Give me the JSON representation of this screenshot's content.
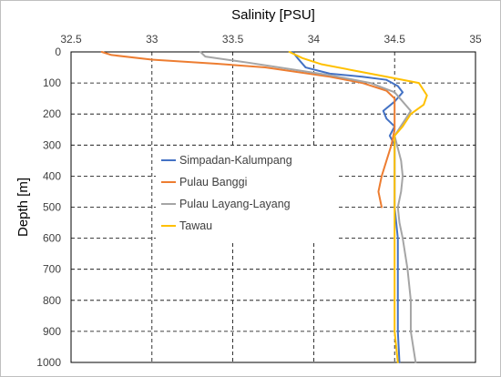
{
  "chart_data": {
    "type": "line",
    "title": "Salinity [PSU]",
    "xlabel": "Salinity [PSU]",
    "ylabel": "Depth [m]",
    "x_axis_position": "top",
    "y_axis_inverted": true,
    "xlim": [
      32.5,
      35
    ],
    "ylim": [
      0,
      1000
    ],
    "x_ticks": [
      32.5,
      33,
      33.5,
      34,
      34.5,
      35
    ],
    "y_ticks": [
      0,
      100,
      200,
      300,
      400,
      500,
      600,
      700,
      800,
      900,
      1000
    ],
    "grid": "dashed",
    "legend_position": "center-left",
    "series": [
      {
        "name": "Simpadan-Kalumpang",
        "color": "#4472C4",
        "points": [
          [
            33.87,
            0
          ],
          [
            33.9,
            20
          ],
          [
            33.95,
            50
          ],
          [
            34.1,
            70
          ],
          [
            34.3,
            80
          ],
          [
            34.45,
            90
          ],
          [
            34.52,
            110
          ],
          [
            34.55,
            130
          ],
          [
            34.5,
            160
          ],
          [
            34.43,
            190
          ],
          [
            34.45,
            215
          ],
          [
            34.5,
            240
          ],
          [
            34.47,
            270
          ],
          [
            34.5,
            300
          ],
          [
            34.5,
            400
          ],
          [
            34.5,
            500
          ],
          [
            34.52,
            600
          ],
          [
            34.52,
            700
          ],
          [
            34.52,
            800
          ],
          [
            34.52,
            900
          ],
          [
            34.53,
            1000
          ]
        ]
      },
      {
        "name": "Pulau Banggi",
        "color": "#ED7D31",
        "points": [
          [
            32.69,
            0
          ],
          [
            32.75,
            10
          ],
          [
            33.0,
            25
          ],
          [
            33.4,
            38
          ],
          [
            33.7,
            50
          ],
          [
            33.9,
            65
          ],
          [
            34.1,
            80
          ],
          [
            34.3,
            100
          ],
          [
            34.45,
            125
          ],
          [
            34.5,
            150
          ],
          [
            34.5,
            200
          ],
          [
            34.5,
            250
          ],
          [
            34.48,
            300
          ],
          [
            34.45,
            350
          ],
          [
            34.42,
            400
          ],
          [
            34.4,
            450
          ],
          [
            34.42,
            500
          ]
        ]
      },
      {
        "name": "Pulau Layang-Layang",
        "color": "#A5A5A5",
        "points": [
          [
            33.3,
            0
          ],
          [
            33.33,
            15
          ],
          [
            33.6,
            35
          ],
          [
            33.85,
            55
          ],
          [
            34.1,
            75
          ],
          [
            34.35,
            100
          ],
          [
            34.5,
            130
          ],
          [
            34.55,
            160
          ],
          [
            34.6,
            190
          ],
          [
            34.55,
            230
          ],
          [
            34.5,
            270
          ],
          [
            34.52,
            310
          ],
          [
            34.54,
            350
          ],
          [
            34.55,
            400
          ],
          [
            34.54,
            450
          ],
          [
            34.52,
            500
          ],
          [
            34.53,
            550
          ],
          [
            34.55,
            600
          ],
          [
            34.58,
            700
          ],
          [
            34.6,
            800
          ],
          [
            34.6,
            900
          ],
          [
            34.63,
            1000
          ]
        ]
      },
      {
        "name": "Tawau",
        "color": "#FFC000",
        "points": [
          [
            33.85,
            0
          ],
          [
            33.93,
            20
          ],
          [
            34.05,
            40
          ],
          [
            34.25,
            60
          ],
          [
            34.45,
            80
          ],
          [
            34.65,
            100
          ],
          [
            34.7,
            140
          ],
          [
            34.68,
            170
          ],
          [
            34.6,
            200
          ],
          [
            34.55,
            240
          ],
          [
            34.5,
            270
          ],
          [
            34.5,
            350
          ],
          [
            34.5,
            500
          ],
          [
            34.5,
            700
          ],
          [
            34.5,
            900
          ],
          [
            34.52,
            1000
          ]
        ]
      }
    ]
  }
}
